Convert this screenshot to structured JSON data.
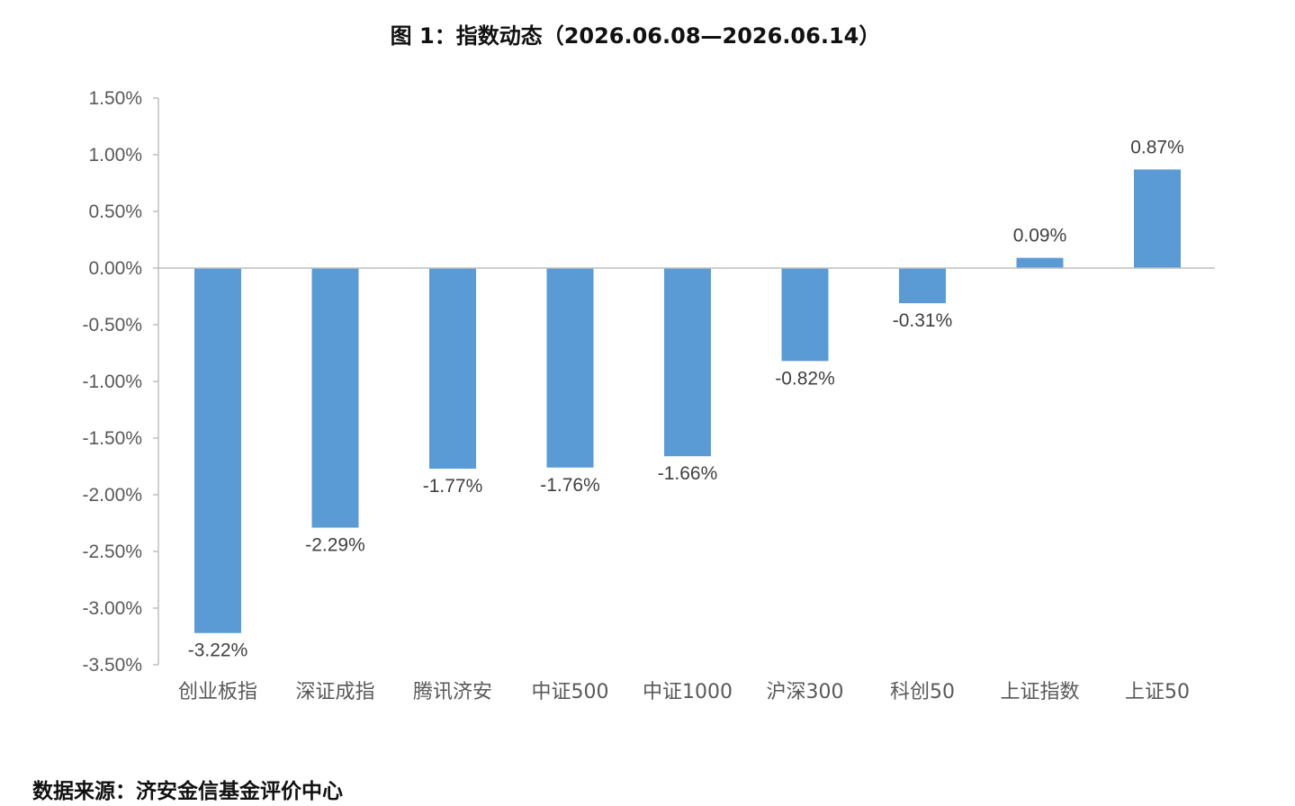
{
  "title": "图 1：指数动态（2026.06.08—2026.06.14）",
  "source": "数据来源：济安金信基金评价中心",
  "colors": {
    "bar": "#5b9bd5",
    "axis": "#bfbfbf",
    "text": "#595959"
  },
  "chart_data": {
    "type": "bar",
    "categories": [
      "创业板指",
      "深证成指",
      "腾讯济安",
      "中证500",
      "中证1000",
      "沪深300",
      "科创50",
      "上证指数",
      "上证50"
    ],
    "values": [
      -3.22,
      -2.29,
      -1.77,
      -1.76,
      -1.66,
      -0.82,
      -0.31,
      0.09,
      0.87
    ],
    "data_labels": [
      "-3.22%",
      "-2.29%",
      "-1.77%",
      "-1.76%",
      "-1.66%",
      "-0.82%",
      "-0.31%",
      "0.09%",
      "0.87%"
    ],
    "ylim": [
      -3.5,
      1.5
    ],
    "yticks": [
      1.5,
      1.0,
      0.5,
      0.0,
      -0.5,
      -1.0,
      -1.5,
      -2.0,
      -2.5,
      -3.0,
      -3.5
    ],
    "ytick_labels": [
      "1.50%",
      "1.00%",
      "0.50%",
      "0.00%",
      "-0.50%",
      "-1.00%",
      "-1.50%",
      "-2.00%",
      "-2.50%",
      "-3.00%",
      "-3.50%"
    ],
    "grid": false,
    "legend": "none"
  }
}
